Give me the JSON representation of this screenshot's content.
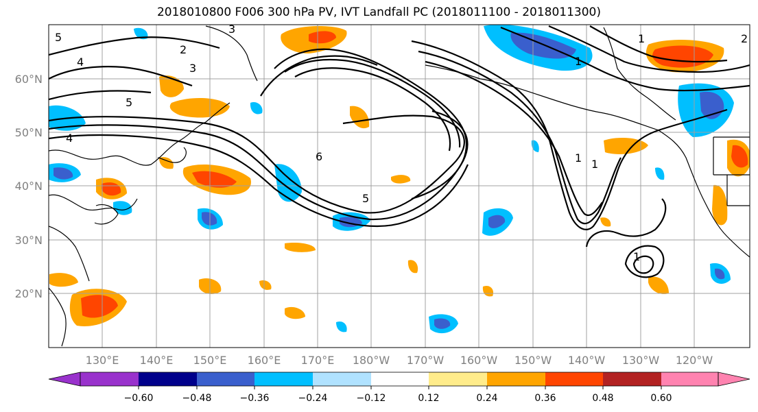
{
  "title": "2018010800 F006 300 hPa PV, IVT Landfall PC (2018011100 - 2018011300)",
  "map": {
    "lon_labels": [
      "130°E",
      "140°E",
      "150°E",
      "160°E",
      "170°E",
      "180°W",
      "170°W",
      "160°W",
      "150°W",
      "140°W",
      "130°W",
      "120°W"
    ],
    "lat_labels": [
      "60°N",
      "50°N",
      "40°N",
      "30°N",
      "20°N"
    ],
    "pv_contour_labels": [
      "3",
      "2",
      "4",
      "3",
      "5",
      "5",
      "4",
      "6",
      "5",
      "1",
      "1",
      "2",
      "1",
      "1",
      "1"
    ],
    "colors": {
      "grid": "#a0a0a0",
      "coast": "#000000",
      "contour": "#000000"
    }
  },
  "colorbar": {
    "ticks": [
      "−0.60",
      "−0.48",
      "−0.36",
      "−0.24",
      "−0.12",
      "0.12",
      "0.24",
      "0.36",
      "0.48",
      "0.60"
    ],
    "colors": [
      "#9932cc",
      "#00008b",
      "#3a5fcd",
      "#00bfff",
      "#b0e2ff",
      "#ffffff",
      "#ffec8b",
      "#ffa500",
      "#ff4500",
      "#b22222",
      "#ff83b0"
    ]
  }
}
